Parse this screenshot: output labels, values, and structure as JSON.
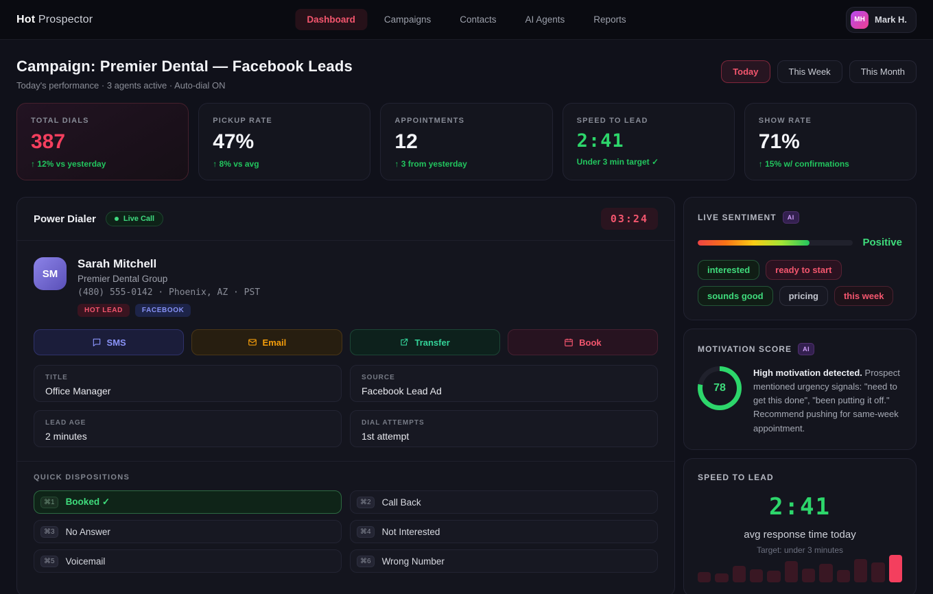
{
  "nav": {
    "brand_bold": "Hot",
    "brand_rest": " Prospector",
    "items": [
      {
        "label": "Dashboard",
        "active": true
      },
      {
        "label": "Campaigns",
        "active": false
      },
      {
        "label": "Contacts",
        "active": false
      },
      {
        "label": "AI Agents",
        "active": false
      },
      {
        "label": "Reports",
        "active": false
      }
    ],
    "user": {
      "initials": "MH",
      "name": "Mark H."
    }
  },
  "header": {
    "title": "Campaign: Premier Dental — Facebook Leads",
    "subtitle": "Today's performance · 3 agents active · Auto-dial ON",
    "ranges": [
      {
        "label": "Today",
        "active": true
      },
      {
        "label": "This Week",
        "active": false
      },
      {
        "label": "This Month",
        "active": false
      }
    ]
  },
  "kpis": [
    {
      "label": "TOTAL DIALS",
      "value": "387",
      "note": "↑ 12% vs yesterday"
    },
    {
      "label": "PICKUP RATE",
      "value": "47%",
      "note": "↑ 8% vs avg"
    },
    {
      "label": "APPOINTMENTS",
      "value": "12",
      "note": "↑ 3 from yesterday"
    },
    {
      "label": "SPEED TO LEAD",
      "value": "2:41",
      "note": "Under 3 min target ✓"
    },
    {
      "label": "SHOW RATE",
      "value": "71%",
      "note": "↑ 15% w/ confirmations"
    }
  ],
  "dialer": {
    "title": "Power Dialer",
    "live_badge": "Live Call",
    "timer": "03:24",
    "contact": {
      "initials": "SM",
      "name": "Sarah Mitchell",
      "company": "Premier Dental Group",
      "phone_line": "(480) 555-0142 · Phoenix, AZ · PST",
      "badges": {
        "hot": "HOT LEAD",
        "source": "FACEBOOK"
      }
    },
    "actions": [
      {
        "label": "SMS"
      },
      {
        "label": "Email"
      },
      {
        "label": "Transfer"
      },
      {
        "label": "Book"
      }
    ],
    "fields": [
      {
        "label": "TITLE",
        "value": "Office Manager"
      },
      {
        "label": "SOURCE",
        "value": "Facebook Lead Ad"
      },
      {
        "label": "LEAD AGE",
        "value": "2 minutes"
      },
      {
        "label": "DIAL ATTEMPTS",
        "value": "1st attempt"
      }
    ],
    "dispositions": {
      "heading": "QUICK DISPOSITIONS",
      "items": [
        {
          "key": "⌘1",
          "label": "Booked ✓",
          "active": true
        },
        {
          "key": "⌘2",
          "label": "Call Back",
          "active": false
        },
        {
          "key": "⌘3",
          "label": "No Answer",
          "active": false
        },
        {
          "key": "⌘4",
          "label": "Not Interested",
          "active": false
        },
        {
          "key": "⌘5",
          "label": "Voicemail",
          "active": false
        },
        {
          "key": "⌘6",
          "label": "Wrong Number",
          "active": false
        }
      ]
    }
  },
  "sentiment": {
    "heading": "LIVE SENTIMENT",
    "ai_badge": "AI",
    "level": "Positive",
    "fill_pct": 72,
    "tags": [
      {
        "label": "interested",
        "type": "green"
      },
      {
        "label": "ready to start",
        "type": "redsolid"
      },
      {
        "label": "sounds good",
        "type": "green"
      },
      {
        "label": "pricing",
        "type": "neutral"
      },
      {
        "label": "this week",
        "type": "red"
      }
    ]
  },
  "motivation": {
    "heading": "MOTIVATION SCORE",
    "ai_badge": "AI",
    "score": 78,
    "ring_color": "#2dd66b",
    "lead": "High motivation detected.",
    "body": " Prospect mentioned urgency signals: \"need to get this done\", \"been putting it off.\" Recommend pushing for same-week appointment."
  },
  "speed": {
    "heading": "SPEED TO LEAD",
    "value": "2:41",
    "caption": "avg response time today",
    "target": "Target: under 3 minutes",
    "bars": [
      38,
      33,
      60,
      48,
      42,
      78,
      50,
      68,
      45,
      85,
      73,
      100
    ]
  },
  "colors": {
    "accent_red": "#f43f5e",
    "accent_green": "#22c55e"
  }
}
